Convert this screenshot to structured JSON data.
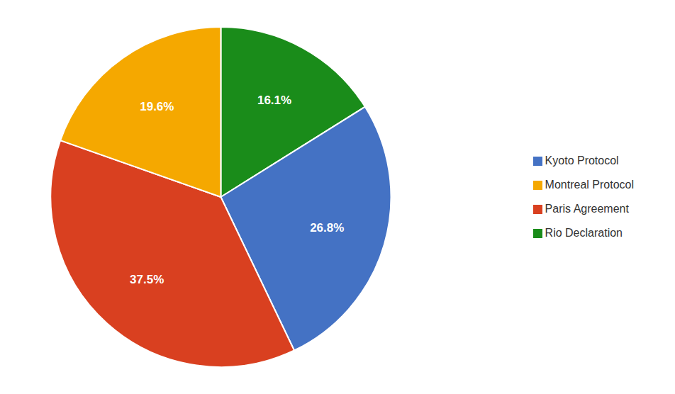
{
  "chart_data": {
    "type": "pie",
    "categories": [
      "Rio Declaration",
      "Kyoto Protocol",
      "Paris Agreement",
      "Montreal Protocol"
    ],
    "values": [
      16.1,
      26.8,
      37.5,
      19.6
    ],
    "value_labels": [
      "16.1%",
      "26.8%",
      "37.5%",
      "19.6%"
    ],
    "colors": [
      "#1A8C1A",
      "#4472C4",
      "#D94020",
      "#F5A800"
    ],
    "data_labels": true,
    "legend": "right"
  }
}
